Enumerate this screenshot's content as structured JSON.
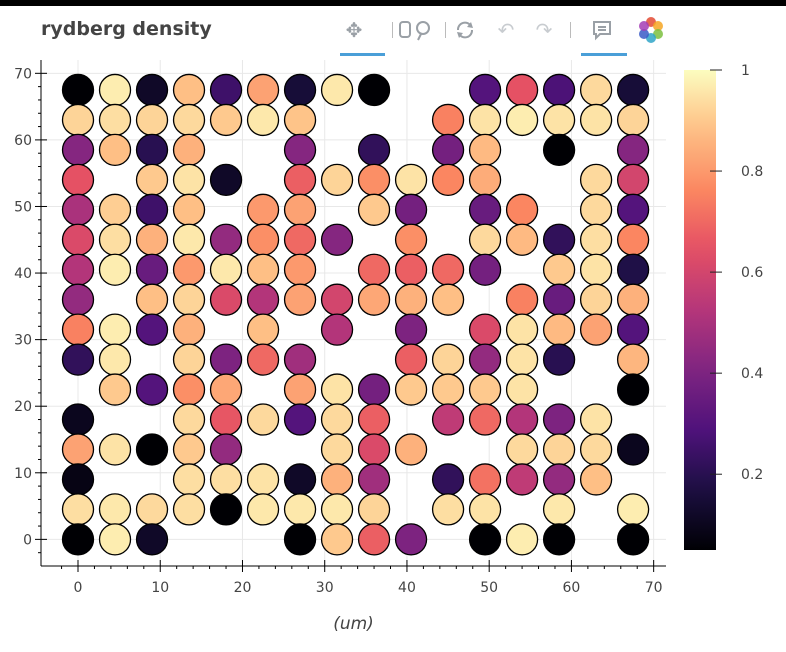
{
  "title": "rydberg density",
  "toolbar": {
    "pan": "pan-tool",
    "box_zoom": "box-zoom-tool",
    "reset": "reset-tool",
    "undo": "undo-tool",
    "redo": "redo-tool",
    "hover": "hover-tool",
    "logo": "bokeh-logo"
  },
  "chart_data": {
    "type": "scatter",
    "title": "rydberg density",
    "xlabel": "(um)",
    "ylabel": "",
    "xlim": [
      -4.5,
      71.5
    ],
    "ylim": [
      -4,
      72
    ],
    "xticks": [
      0,
      10,
      20,
      30,
      40,
      50,
      60,
      70
    ],
    "yticks": [
      0,
      10,
      20,
      30,
      40,
      50,
      60,
      70
    ],
    "x_positions": [
      0,
      4.5,
      9,
      13.5,
      18,
      22.5,
      27,
      31.5,
      36,
      40.5,
      45,
      49.5,
      54,
      58.5,
      63,
      67.5
    ],
    "y_positions": [
      67.5,
      63,
      58.5,
      54,
      49.5,
      45,
      40.5,
      36,
      31.5,
      27,
      22.5,
      18,
      13.5,
      9,
      4.5,
      0
    ],
    "colorbar": {
      "min": 0.05,
      "max": 1,
      "ticks": [
        "0.2",
        "0.4",
        "0.6",
        "0.8",
        "1"
      ],
      "tick_values": [
        0.2,
        0.4,
        0.6,
        0.8,
        1.0
      ],
      "palette": "magma"
    },
    "grid_values_rows_top_to_bottom": [
      [
        0.05,
        0.97,
        0.12,
        0.88,
        0.25,
        0.82,
        0.15,
        0.96,
        0.02,
        null,
        null,
        0.3,
        0.65,
        0.28,
        0.93,
        0.15
      ],
      [
        0.92,
        0.94,
        0.92,
        0.93,
        0.9,
        0.96,
        0.89,
        null,
        null,
        null,
        0.75,
        0.95,
        0.97,
        0.95,
        0.95,
        0.92
      ],
      [
        0.42,
        0.88,
        0.2,
        0.85,
        null,
        null,
        0.42,
        null,
        0.22,
        null,
        0.38,
        0.87,
        null,
        0.05,
        null,
        0.42
      ],
      [
        0.65,
        null,
        0.9,
        0.95,
        0.12,
        null,
        0.68,
        0.92,
        0.78,
        0.95,
        0.76,
        0.84,
        null,
        null,
        0.93,
        0.6
      ],
      [
        0.5,
        0.91,
        0.25,
        0.88,
        null,
        0.8,
        0.82,
        null,
        0.9,
        0.38,
        null,
        0.35,
        0.76,
        null,
        0.93,
        0.3
      ],
      [
        0.62,
        0.94,
        0.85,
        0.96,
        0.45,
        0.78,
        0.7,
        0.42,
        null,
        0.78,
        null,
        0.93,
        0.87,
        0.22,
        0.94,
        0.76
      ],
      [
        0.52,
        0.97,
        0.35,
        0.8,
        0.96,
        0.88,
        0.8,
        null,
        0.7,
        0.68,
        0.7,
        0.38,
        null,
        0.9,
        0.95,
        0.18
      ],
      [
        0.45,
        null,
        0.88,
        0.92,
        0.62,
        0.52,
        0.82,
        0.6,
        0.83,
        0.85,
        0.88,
        null,
        0.75,
        0.35,
        0.92,
        0.85
      ],
      [
        0.75,
        0.97,
        0.3,
        0.85,
        null,
        0.88,
        null,
        0.52,
        null,
        0.4,
        null,
        0.62,
        0.95,
        0.87,
        0.82,
        0.3
      ],
      [
        0.22,
        0.96,
        null,
        0.92,
        0.4,
        0.7,
        0.48,
        null,
        null,
        0.68,
        0.92,
        0.45,
        0.95,
        0.2,
        null,
        0.86
      ],
      [
        null,
        0.9,
        0.3,
        0.78,
        0.83,
        null,
        0.82,
        0.95,
        0.38,
        0.9,
        0.9,
        0.9,
        0.95,
        null,
        null,
        0.05
      ],
      [
        0.1,
        null,
        null,
        0.93,
        0.66,
        0.93,
        0.3,
        0.93,
        0.68,
        null,
        0.55,
        0.7,
        0.52,
        0.4,
        0.95,
        null
      ],
      [
        0.82,
        0.95,
        0.05,
        0.9,
        0.45,
        null,
        null,
        0.93,
        0.62,
        0.85,
        null,
        null,
        0.93,
        0.92,
        0.93,
        0.1
      ],
      [
        0.08,
        null,
        null,
        0.94,
        0.94,
        0.95,
        0.12,
        0.85,
        0.48,
        null,
        0.22,
        0.72,
        0.55,
        0.45,
        0.88,
        null
      ],
      [
        0.94,
        0.96,
        0.93,
        0.94,
        0.02,
        0.96,
        0.96,
        0.96,
        0.92,
        null,
        0.94,
        0.95,
        null,
        0.96,
        null,
        0.97
      ],
      [
        0.02,
        0.97,
        0.12,
        null,
        null,
        null,
        0.05,
        0.9,
        0.68,
        0.4,
        null,
        0.05,
        0.97,
        0.02,
        null,
        0.02
      ]
    ]
  }
}
